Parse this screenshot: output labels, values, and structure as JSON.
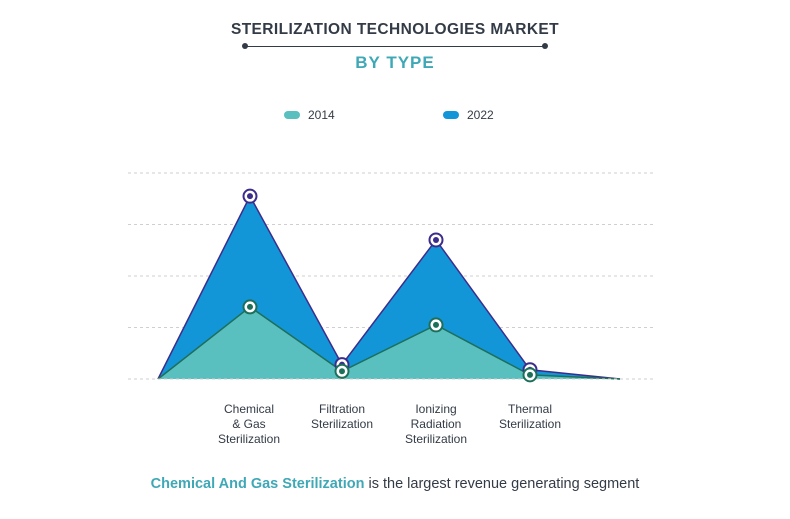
{
  "header": {
    "title": "STERILIZATION TECHNOLOGIES MARKET",
    "subtitle": "BY TYPE"
  },
  "colors": {
    "title": "#333b46",
    "accent": "#3fa8b6",
    "series_2014": "#5abfbf",
    "series_2022": "#1396d8",
    "outline_2014": "#1d6f5a",
    "outline_2022": "#3c2d8c",
    "grid": "#cfcfcf"
  },
  "footer": {
    "highlight": "Chemical And Gas Sterilization",
    "text": " is the largest revenue generating segment"
  },
  "chart_data": {
    "type": "area",
    "categories": [
      "Chemical\n& Gas\nSterilization",
      "Filtration\nSterilization",
      "Ionizing\nRadiation\nSterilization",
      "Thermal\nSterilization"
    ],
    "series": [
      {
        "name": "2014",
        "values": [
          1.4,
          0.15,
          1.05,
          0.08
        ]
      },
      {
        "name": "2022",
        "values": [
          3.55,
          0.28,
          2.7,
          0.18
        ]
      }
    ],
    "ylim": [
      0,
      4
    ],
    "grid": true,
    "legend_position": "top-center"
  }
}
